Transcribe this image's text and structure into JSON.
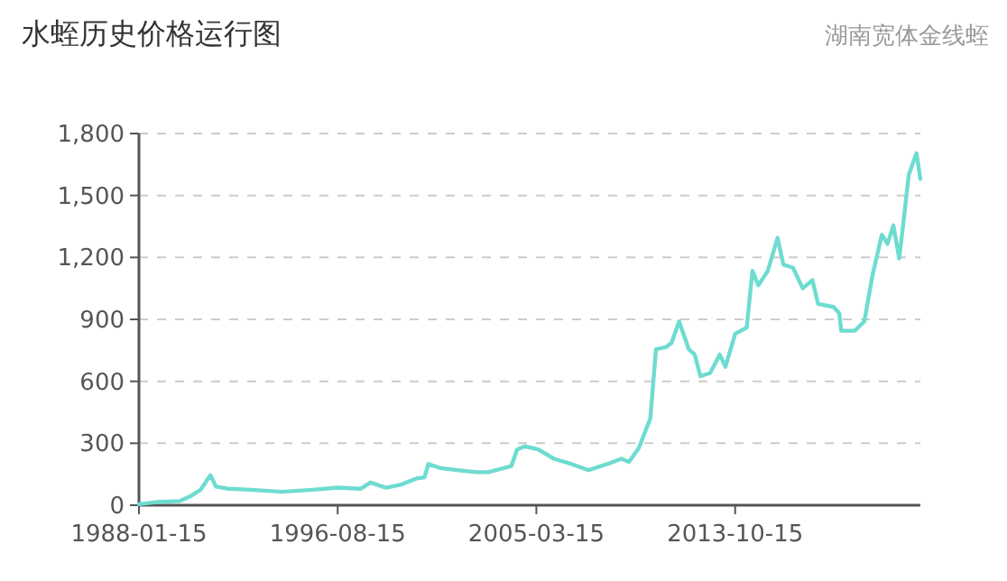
{
  "chart_data": {
    "type": "line",
    "title": "水蛭历史价格运行图",
    "subtitle": "湖南宽体金线蛭",
    "color": "#6edcd0",
    "grid": "y",
    "x": [
      "1988-01-15",
      "1988-10-15",
      "1989-10-15",
      "1990-04-15",
      "1990-09-15",
      "1991-02-15",
      "1991-05-15",
      "1991-11-15",
      "1992-11-15",
      "1994-03-15",
      "1995-07-15",
      "1996-08-15",
      "1997-08-15",
      "1998-01-15",
      "1998-09-15",
      "1999-05-15",
      "2000-01-15",
      "2000-05-15",
      "2000-07-15",
      "2001-01-15",
      "2001-10-15",
      "2002-08-15",
      "2003-02-15",
      "2004-02-15",
      "2004-05-15",
      "2004-09-15",
      "2005-04-15",
      "2005-12-15",
      "2006-09-15",
      "2007-06-15",
      "2008-04-15",
      "2008-11-15",
      "2009-03-15",
      "2009-08-15",
      "2010-02-15",
      "2010-05-15",
      "2010-10-15",
      "2011-01-15",
      "2011-05-15",
      "2011-10-15",
      "2012-01-15",
      "2012-04-15",
      "2012-09-15",
      "2013-02-15",
      "2013-05-15",
      "2013-10-15",
      "2014-04-15",
      "2014-07-15",
      "2014-10-15",
      "2015-03-15",
      "2015-08-15",
      "2015-11-15",
      "2016-04-15",
      "2016-09-15",
      "2017-02-15",
      "2017-05-15",
      "2018-01-15",
      "2018-04-15",
      "2018-05-15",
      "2018-12-15",
      "2019-05-15",
      "2019-09-15",
      "2020-02-15",
      "2020-05-15",
      "2020-08-15",
      "2020-11-15",
      "2021-01-15",
      "2021-04-15",
      "2021-08-15",
      "2021-10-15"
    ],
    "values": [
      5,
      15,
      20,
      45,
      75,
      145,
      90,
      80,
      75,
      65,
      75,
      85,
      80,
      110,
      85,
      100,
      130,
      135,
      200,
      180,
      170,
      160,
      160,
      190,
      270,
      285,
      270,
      225,
      200,
      170,
      200,
      225,
      210,
      275,
      420,
      755,
      765,
      785,
      890,
      755,
      730,
      625,
      640,
      730,
      670,
      830,
      860,
      1135,
      1065,
      1135,
      1295,
      1165,
      1150,
      1050,
      1090,
      975,
      960,
      930,
      845,
      845,
      890,
      1105,
      1310,
      1265,
      1355,
      1195,
      1355,
      1600,
      1705,
      1580
    ],
    "xlim": [
      "1988-01-15",
      "2021-10-15"
    ],
    "xticks": [
      "1988-01-15",
      "1996-08-15",
      "2005-03-15",
      "2013-10-15"
    ],
    "ylim": [
      0,
      1800
    ],
    "yticks": [
      0,
      300,
      600,
      900,
      {
        "value": 1200,
        "label": "1,200"
      },
      {
        "value": 1500,
        "label": "1,500"
      },
      {
        "value": 1800,
        "label": "1,800"
      }
    ]
  }
}
